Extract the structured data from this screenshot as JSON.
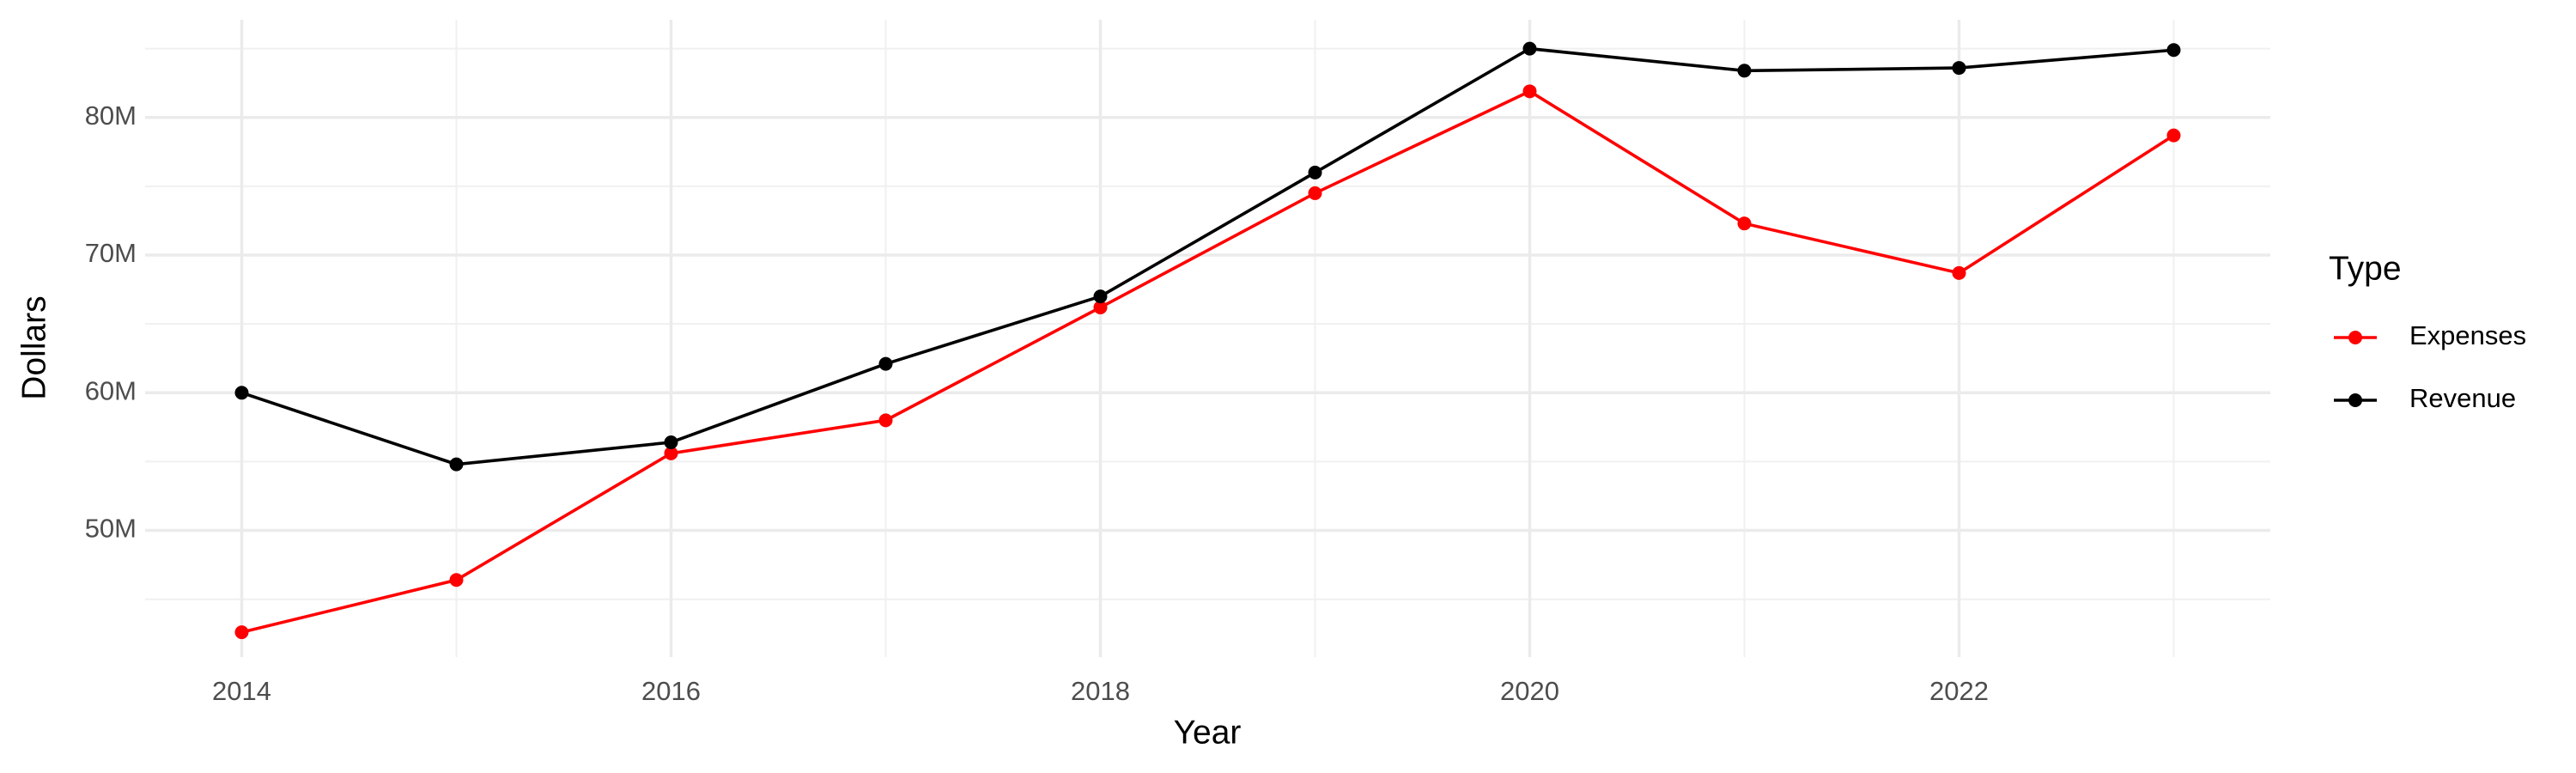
{
  "chart_data": {
    "type": "line",
    "x_label": "Year",
    "y_label": "Dollars",
    "x": [
      2014,
      2015,
      2016,
      2017,
      2018,
      2019,
      2020,
      2021,
      2022,
      2023
    ],
    "series": [
      {
        "name": "Expenses",
        "color": "#ff0000",
        "values": [
          42600000,
          46400000,
          55600000,
          58000000,
          66200000,
          74500000,
          81900000,
          72300000,
          68700000,
          78700000
        ]
      },
      {
        "name": "Revenue",
        "color": "#000000",
        "values": [
          60000000,
          54800000,
          56400000,
          62100000,
          67000000,
          76000000,
          85000000,
          83400000,
          83600000,
          84900000
        ]
      }
    ],
    "xlim": [
      2013.55,
      2023.45
    ],
    "xticks": [
      2014,
      2016,
      2018,
      2020,
      2022
    ],
    "ylim": [
      40800000,
      87100000
    ],
    "yticks": [
      {
        "value": 50000000,
        "label": "50M"
      },
      {
        "value": 60000000,
        "label": "60M"
      },
      {
        "value": 70000000,
        "label": "70M"
      },
      {
        "value": 80000000,
        "label": "80M"
      }
    ],
    "grid": true,
    "legend_title": "Type",
    "legend_position": "right"
  }
}
